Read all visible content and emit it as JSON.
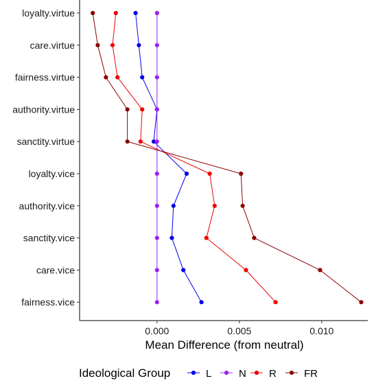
{
  "chart_data": {
    "type": "line",
    "orientation": "horizontal",
    "xlabel": "Mean Difference (from neutral)",
    "ylabel": "",
    "xlim": [
      -0.0047,
      0.0128
    ],
    "x_ticks": [
      0,
      0.005,
      0.01
    ],
    "x_tick_labels": [
      "0.000",
      "0.005",
      "0.010"
    ],
    "categories": [
      "loyalty.virtue",
      "care.virtue",
      "fairness.virtue",
      "authority.virtue",
      "sanctity.virtue",
      "loyalty.vice",
      "authority.vice",
      "sanctity.vice",
      "care.vice",
      "fairness.vice"
    ],
    "grid": false,
    "legend": {
      "title": "Ideological Group",
      "position": "bottom"
    },
    "series": [
      {
        "name": "L",
        "color": "#0000ee",
        "values": [
          -0.0013,
          -0.0011,
          -0.0009,
          0.0,
          -0.0002,
          0.0018,
          0.001,
          0.0009,
          0.0016,
          0.0027
        ]
      },
      {
        "name": "N",
        "color": "#a020f0",
        "values": [
          0,
          0,
          0,
          0,
          0,
          0,
          0,
          0,
          0,
          0
        ]
      },
      {
        "name": "R",
        "color": "#ee0000",
        "values": [
          -0.0025,
          -0.0027,
          -0.0024,
          -0.0009,
          -0.001,
          0.0032,
          0.0035,
          0.003,
          0.0054,
          0.0072
        ]
      },
      {
        "name": "FR",
        "color": "#8b0000",
        "values": [
          -0.0039,
          -0.0036,
          -0.0031,
          -0.0018,
          -0.0018,
          0.0051,
          0.0052,
          0.0059,
          0.0099,
          0.0124
        ]
      }
    ]
  }
}
